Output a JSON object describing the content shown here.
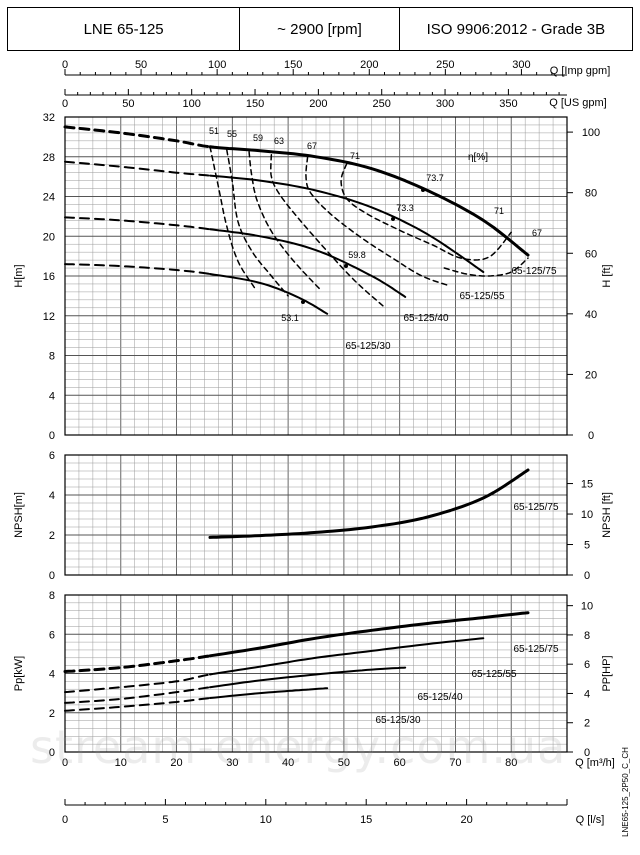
{
  "header": {
    "model": "LNE 65-125",
    "speed": "~ 2900 [rpm]",
    "standard": "ISO 9906:2012 - Grade 3B"
  },
  "watermark": "stream-energy.com.ua",
  "drawing_code": "LNE65-125_2P50_C_CH",
  "colors": {
    "line": "#000000",
    "grid": "#9a9a9a",
    "background": "#ffffff"
  },
  "chart_data": [
    {
      "type": "line",
      "id": "head",
      "title": "",
      "xlabel": "Q [m³/h]",
      "ylabel": "H[m]",
      "ylabel_right": "H [ft]",
      "xlim": [
        0,
        90
      ],
      "ylim": [
        0,
        32
      ],
      "yticks": [
        0,
        4,
        8,
        12,
        16,
        20,
        24,
        28,
        32
      ],
      "yticks_right": [
        0,
        20,
        40,
        60,
        80,
        100
      ],
      "top_axis_imp_label": "Q [Imp gpm]",
      "top_axis_imp_ticks": [
        0,
        50,
        100,
        150,
        200,
        250,
        300
      ],
      "top_axis_us_label": "Q [US gpm]",
      "top_axis_us_ticks": [
        0,
        50,
        100,
        150,
        200,
        250,
        300,
        350
      ],
      "grid": true,
      "series": [
        {
          "name": "65-125/75",
          "dashed_x": [
            0,
            26
          ],
          "x": [
            0,
            10,
            20,
            26,
            35,
            45,
            55,
            65,
            75,
            83
          ],
          "y": [
            31.0,
            30.4,
            29.6,
            29.0,
            28.6,
            28.0,
            26.8,
            24.6,
            21.6,
            18.1
          ]
        },
        {
          "name": "65-125/55",
          "dashed_x": [
            0,
            26
          ],
          "x": [
            0,
            10,
            20,
            26,
            35,
            45,
            55,
            65,
            75
          ],
          "y": [
            27.5,
            27.0,
            26.4,
            26.1,
            25.6,
            24.6,
            22.9,
            20.2,
            16.4
          ]
        },
        {
          "name": "65-125/40",
          "dashed_x": [
            0,
            26
          ],
          "x": [
            0,
            10,
            20,
            26,
            35,
            45,
            55,
            61
          ],
          "y": [
            21.9,
            21.6,
            21.1,
            20.7,
            20.0,
            18.6,
            16.0,
            13.9
          ]
        },
        {
          "name": "65-125/30",
          "dashed_x": [
            0,
            26
          ],
          "x": [
            0,
            10,
            20,
            26,
            35,
            42,
            47
          ],
          "y": [
            17.2,
            17.0,
            16.6,
            16.2,
            15.3,
            13.8,
            12.2
          ]
        }
      ],
      "efficiency_label": "η[%]",
      "efficiency_contours": [
        {
          "label": "51",
          "x": [
            26,
            27.5,
            29,
            31,
            34
          ],
          "y": [
            29,
            25,
            21,
            17.5,
            14.8
          ]
        },
        {
          "label": "55",
          "x": [
            29,
            30,
            31,
            33.5,
            37,
            40
          ],
          "y": [
            28.7,
            25.5,
            21.5,
            18.5,
            16,
            14
          ]
        },
        {
          "label": "59",
          "x": [
            33,
            33.5,
            34.5,
            37,
            41,
            46
          ],
          "y": [
            28.5,
            26,
            23.5,
            20.5,
            17.5,
            14.5
          ]
        },
        {
          "label": "63",
          "x": [
            37,
            37,
            38.5,
            42,
            47,
            52,
            57
          ],
          "y": [
            28.2,
            26,
            24.2,
            21.7,
            18.5,
            15.5,
            13
          ]
        },
        {
          "label": "67",
          "x": [
            43.5,
            43.2,
            44,
            47.5,
            53,
            59,
            64,
            69
          ],
          "y": [
            28,
            26,
            24.4,
            22.3,
            19.9,
            17.7,
            16,
            15
          ]
        },
        {
          "label": "71",
          "x": [
            50.5,
            49.5,
            50.5,
            54,
            60,
            66,
            71,
            76,
            80
          ],
          "y": [
            27.3,
            25.6,
            23.8,
            22.3,
            20.6,
            19.1,
            17.8,
            17.9,
            20.4
          ]
        },
        {
          "label": "67",
          "x": [
            68,
            72,
            76,
            80,
            83
          ],
          "y": [
            16.8,
            16.2,
            16,
            16.4,
            17.8
          ]
        }
      ],
      "efficiency_point_labels": [
        "73.7",
        "73.3",
        "59.8",
        "53.1"
      ],
      "curve_labels": [
        "65-125/75",
        "65-125/55",
        "65-125/40",
        "65-125/30"
      ]
    },
    {
      "type": "line",
      "id": "npsh",
      "title": "",
      "xlabel": "Q [m³/h]",
      "ylabel": "NPSH[m]",
      "ylabel_right": "NPSH [ft]",
      "xlim": [
        0,
        90
      ],
      "ylim": [
        0,
        6
      ],
      "yticks": [
        0,
        2,
        4,
        6
      ],
      "yticks_right": [
        0,
        5,
        10,
        15
      ],
      "grid": true,
      "series": [
        {
          "name": "65-125/75",
          "x": [
            26,
            35,
            45,
            55,
            65,
            75,
            83
          ],
          "y": [
            1.88,
            1.97,
            2.13,
            2.4,
            2.9,
            3.85,
            5.25
          ]
        }
      ]
    },
    {
      "type": "line",
      "id": "power",
      "title": "",
      "xlabel": "Q [m³/h]",
      "ylabel": "Pp[kW]",
      "ylabel_right": "PP[HP]",
      "xlim": [
        0,
        90
      ],
      "ylim": [
        0,
        8
      ],
      "yticks": [
        0,
        2,
        4,
        6,
        8
      ],
      "yticks_right": [
        0,
        2,
        4,
        6,
        8,
        10
      ],
      "grid": true,
      "xticks": [
        0,
        10,
        20,
        30,
        40,
        50,
        60,
        70,
        80
      ],
      "bottom_axis_ls_label": "Q [l/s]",
      "bottom_axis_ls_ticks": [
        0,
        5,
        10,
        15,
        20
      ],
      "series": [
        {
          "name": "65-125/75",
          "dashed_x": [
            0,
            26
          ],
          "x": [
            0,
            10,
            20,
            26,
            35,
            45,
            55,
            65,
            75,
            83
          ],
          "y": [
            4.1,
            4.3,
            4.65,
            4.9,
            5.3,
            5.8,
            6.2,
            6.55,
            6.85,
            7.1
          ]
        },
        {
          "name": "65-125/55",
          "dashed_x": [
            0,
            26
          ],
          "x": [
            0,
            10,
            20,
            26,
            35,
            45,
            55,
            65,
            75
          ],
          "y": [
            3.05,
            3.3,
            3.6,
            3.95,
            4.35,
            4.8,
            5.15,
            5.5,
            5.8
          ]
        },
        {
          "name": "65-125/40",
          "dashed_x": [
            0,
            26
          ],
          "x": [
            0,
            10,
            20,
            26,
            35,
            45,
            55,
            61
          ],
          "y": [
            2.5,
            2.7,
            3.05,
            3.3,
            3.65,
            3.95,
            4.2,
            4.3
          ]
        },
        {
          "name": "65-125/30",
          "dashed_x": [
            0,
            26
          ],
          "x": [
            0,
            10,
            20,
            26,
            35,
            42,
            47
          ],
          "y": [
            2.1,
            2.3,
            2.55,
            2.75,
            3.0,
            3.15,
            3.25
          ]
        }
      ],
      "curve_labels": [
        "65-125/75",
        "65-125/55",
        "65-125/40",
        "65-125/30"
      ]
    }
  ]
}
